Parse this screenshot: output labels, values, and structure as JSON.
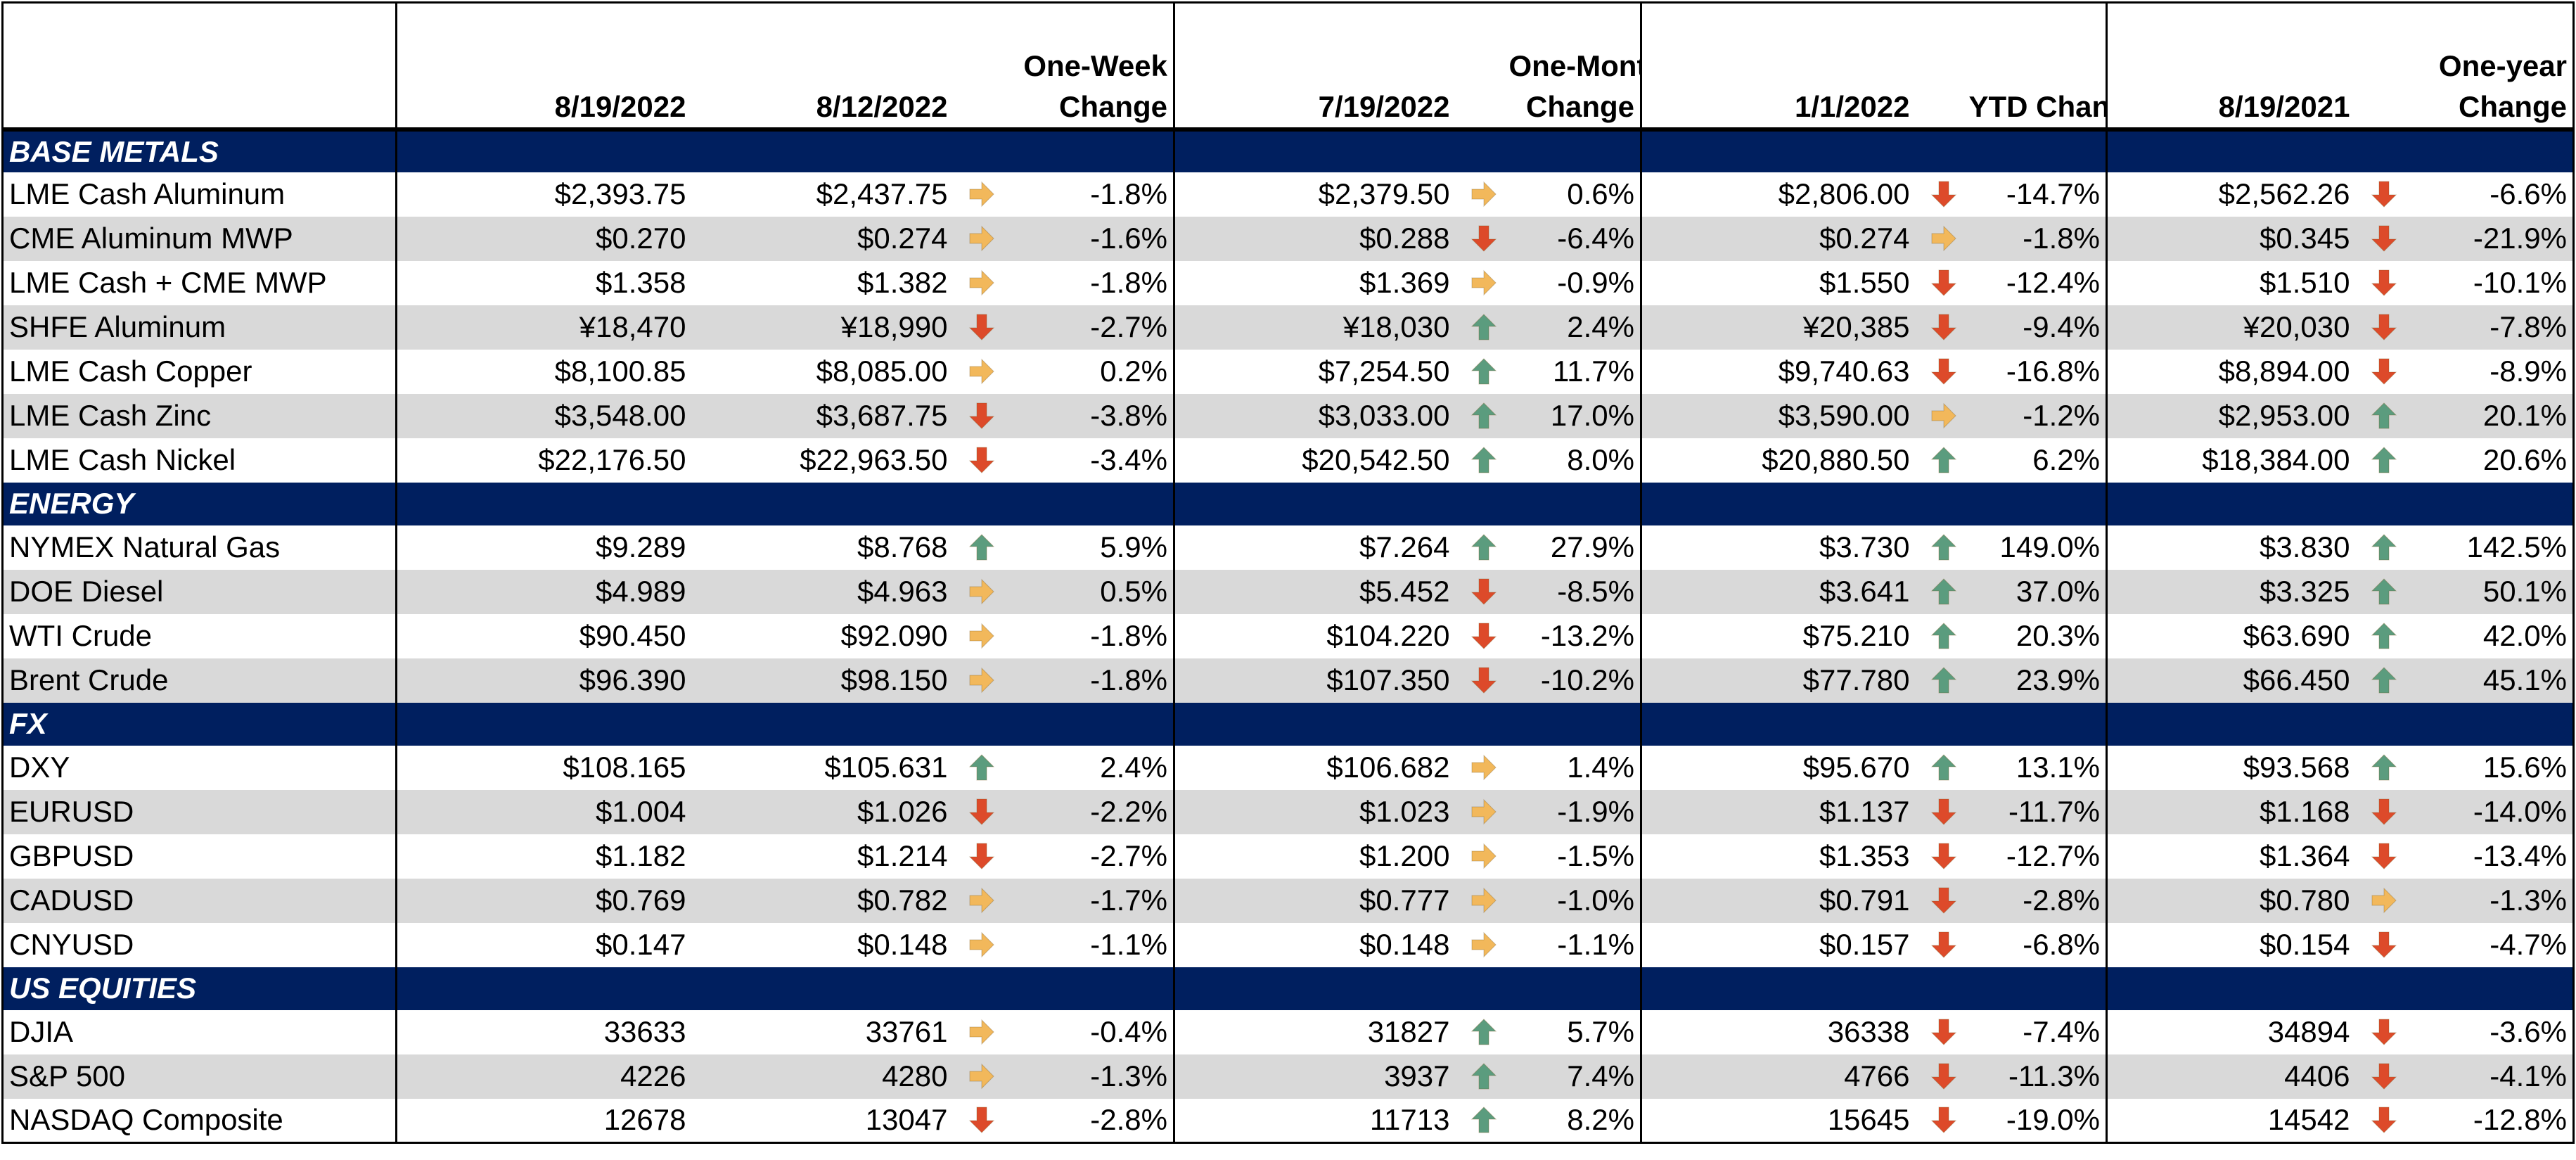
{
  "colors": {
    "header_band": "#001f5f",
    "shade": "#d9d9d9",
    "up": "#5b9c7e",
    "down": "#dd4a2a",
    "flat": "#f2b85b"
  },
  "headers": [
    "",
    "8/19/2022",
    "8/12/2022",
    "",
    "One-Week\nChange",
    "7/19/2022",
    "",
    "One-Month\nChange",
    "1/1/2022",
    "",
    "YTD Change",
    "8/19/2021",
    "",
    "One-year\nChange"
  ],
  "sections": [
    {
      "title": "BASE METALS",
      "rows": [
        {
          "name": "LME Cash Aluminum",
          "c1": "$2,393.75",
          "c2": "$2,437.75",
          "a1": "flat",
          "w": "-1.8%",
          "c3": "$2,379.50",
          "a2": "flat",
          "m": "0.6%",
          "c4": "$2,806.00",
          "a3": "down",
          "ytd": "-14.7%",
          "c5": "$2,562.26",
          "a4": "down",
          "y": "-6.6%"
        },
        {
          "name": "CME Aluminum MWP",
          "c1": "$0.270",
          "c2": "$0.274",
          "a1": "flat",
          "w": "-1.6%",
          "c3": "$0.288",
          "a2": "down",
          "m": "-6.4%",
          "c4": "$0.274",
          "a3": "flat",
          "ytd": "-1.8%",
          "c5": "$0.345",
          "a4": "down",
          "y": "-21.9%"
        },
        {
          "name": "LME Cash + CME MWP",
          "c1": "$1.358",
          "c2": "$1.382",
          "a1": "flat",
          "w": "-1.8%",
          "c3": "$1.369",
          "a2": "flat",
          "m": "-0.9%",
          "c4": "$1.550",
          "a3": "down",
          "ytd": "-12.4%",
          "c5": "$1.510",
          "a4": "down",
          "y": "-10.1%"
        },
        {
          "name": "SHFE Aluminum",
          "c1": "¥18,470",
          "c2": "¥18,990",
          "a1": "down",
          "w": "-2.7%",
          "c3": "¥18,030",
          "a2": "up",
          "m": "2.4%",
          "c4": "¥20,385",
          "a3": "down",
          "ytd": "-9.4%",
          "c5": "¥20,030",
          "a4": "down",
          "y": "-7.8%"
        },
        {
          "name": "LME Cash Copper",
          "c1": "$8,100.85",
          "c2": "$8,085.00",
          "a1": "flat",
          "w": "0.2%",
          "c3": "$7,254.50",
          "a2": "up",
          "m": "11.7%",
          "c4": "$9,740.63",
          "a3": "down",
          "ytd": "-16.8%",
          "c5": "$8,894.00",
          "a4": "down",
          "y": "-8.9%"
        },
        {
          "name": "LME Cash Zinc",
          "c1": "$3,548.00",
          "c2": "$3,687.75",
          "a1": "down",
          "w": "-3.8%",
          "c3": "$3,033.00",
          "a2": "up",
          "m": "17.0%",
          "c4": "$3,590.00",
          "a3": "flat",
          "ytd": "-1.2%",
          "c5": "$2,953.00",
          "a4": "up",
          "y": "20.1%"
        },
        {
          "name": "LME Cash Nickel",
          "c1": "$22,176.50",
          "c2": "$22,963.50",
          "a1": "down",
          "w": "-3.4%",
          "c3": "$20,542.50",
          "a2": "up",
          "m": "8.0%",
          "c4": "$20,880.50",
          "a3": "up",
          "ytd": "6.2%",
          "c5": "$18,384.00",
          "a4": "up",
          "y": "20.6%"
        }
      ]
    },
    {
      "title": "ENERGY",
      "rows": [
        {
          "name": "NYMEX Natural Gas",
          "c1": "$9.289",
          "c2": "$8.768",
          "a1": "up",
          "w": "5.9%",
          "c3": "$7.264",
          "a2": "up",
          "m": "27.9%",
          "c4": "$3.730",
          "a3": "up",
          "ytd": "149.0%",
          "c5": "$3.830",
          "a4": "up",
          "y": "142.5%"
        },
        {
          "name": "DOE Diesel",
          "c1": "$4.989",
          "c2": "$4.963",
          "a1": "flat",
          "w": "0.5%",
          "c3": "$5.452",
          "a2": "down",
          "m": "-8.5%",
          "c4": "$3.641",
          "a3": "up",
          "ytd": "37.0%",
          "c5": "$3.325",
          "a4": "up",
          "y": "50.1%"
        },
        {
          "name": "WTI Crude",
          "c1": "$90.450",
          "c2": "$92.090",
          "a1": "flat",
          "w": "-1.8%",
          "c3": "$104.220",
          "a2": "down",
          "m": "-13.2%",
          "c4": "$75.210",
          "a3": "up",
          "ytd": "20.3%",
          "c5": "$63.690",
          "a4": "up",
          "y": "42.0%"
        },
        {
          "name": "Brent Crude",
          "c1": "$96.390",
          "c2": "$98.150",
          "a1": "flat",
          "w": "-1.8%",
          "c3": "$107.350",
          "a2": "down",
          "m": "-10.2%",
          "c4": "$77.780",
          "a3": "up",
          "ytd": "23.9%",
          "c5": "$66.450",
          "a4": "up",
          "y": "45.1%"
        }
      ]
    },
    {
      "title": "FX",
      "rows": [
        {
          "name": "DXY",
          "c1": "$108.165",
          "c2": "$105.631",
          "a1": "up",
          "w": "2.4%",
          "c3": "$106.682",
          "a2": "flat",
          "m": "1.4%",
          "c4": "$95.670",
          "a3": "up",
          "ytd": "13.1%",
          "c5": "$93.568",
          "a4": "up",
          "y": "15.6%"
        },
        {
          "name": "EURUSD",
          "c1": "$1.004",
          "c2": "$1.026",
          "a1": "down",
          "w": "-2.2%",
          "c3": "$1.023",
          "a2": "flat",
          "m": "-1.9%",
          "c4": "$1.137",
          "a3": "down",
          "ytd": "-11.7%",
          "c5": "$1.168",
          "a4": "down",
          "y": "-14.0%"
        },
        {
          "name": "GBPUSD",
          "c1": "$1.182",
          "c2": "$1.214",
          "a1": "down",
          "w": "-2.7%",
          "c3": "$1.200",
          "a2": "flat",
          "m": "-1.5%",
          "c4": "$1.353",
          "a3": "down",
          "ytd": "-12.7%",
          "c5": "$1.364",
          "a4": "down",
          "y": "-13.4%"
        },
        {
          "name": "CADUSD",
          "c1": "$0.769",
          "c2": "$0.782",
          "a1": "flat",
          "w": "-1.7%",
          "c3": "$0.777",
          "a2": "flat",
          "m": "-1.0%",
          "c4": "$0.791",
          "a3": "down",
          "ytd": "-2.8%",
          "c5": "$0.780",
          "a4": "flat",
          "y": "-1.3%"
        },
        {
          "name": "CNYUSD",
          "c1": "$0.147",
          "c2": "$0.148",
          "a1": "flat",
          "w": "-1.1%",
          "c3": "$0.148",
          "a2": "flat",
          "m": "-1.1%",
          "c4": "$0.157",
          "a3": "down",
          "ytd": "-6.8%",
          "c5": "$0.154",
          "a4": "down",
          "y": "-4.7%"
        }
      ]
    },
    {
      "title": "US EQUITIES",
      "rows": [
        {
          "name": "DJIA",
          "c1": "33633",
          "c2": "33761",
          "a1": "flat",
          "w": "-0.4%",
          "c3": "31827",
          "a2": "up",
          "m": "5.7%",
          "c4": "36338",
          "a3": "down",
          "ytd": "-7.4%",
          "c5": "34894",
          "a4": "down",
          "y": "-3.6%"
        },
        {
          "name": "S&P 500",
          "c1": "4226",
          "c2": "4280",
          "a1": "flat",
          "w": "-1.3%",
          "c3": "3937",
          "a2": "up",
          "m": "7.4%",
          "c4": "4766",
          "a3": "down",
          "ytd": "-11.3%",
          "c5": "4406",
          "a4": "down",
          "y": "-4.1%"
        },
        {
          "name": "NASDAQ Composite",
          "c1": "12678",
          "c2": "13047",
          "a1": "down",
          "w": "-2.8%",
          "c3": "11713",
          "a2": "up",
          "m": "8.2%",
          "c4": "15645",
          "a3": "down",
          "ytd": "-19.0%",
          "c5": "14542",
          "a4": "down",
          "y": "-12.8%"
        }
      ]
    }
  ]
}
